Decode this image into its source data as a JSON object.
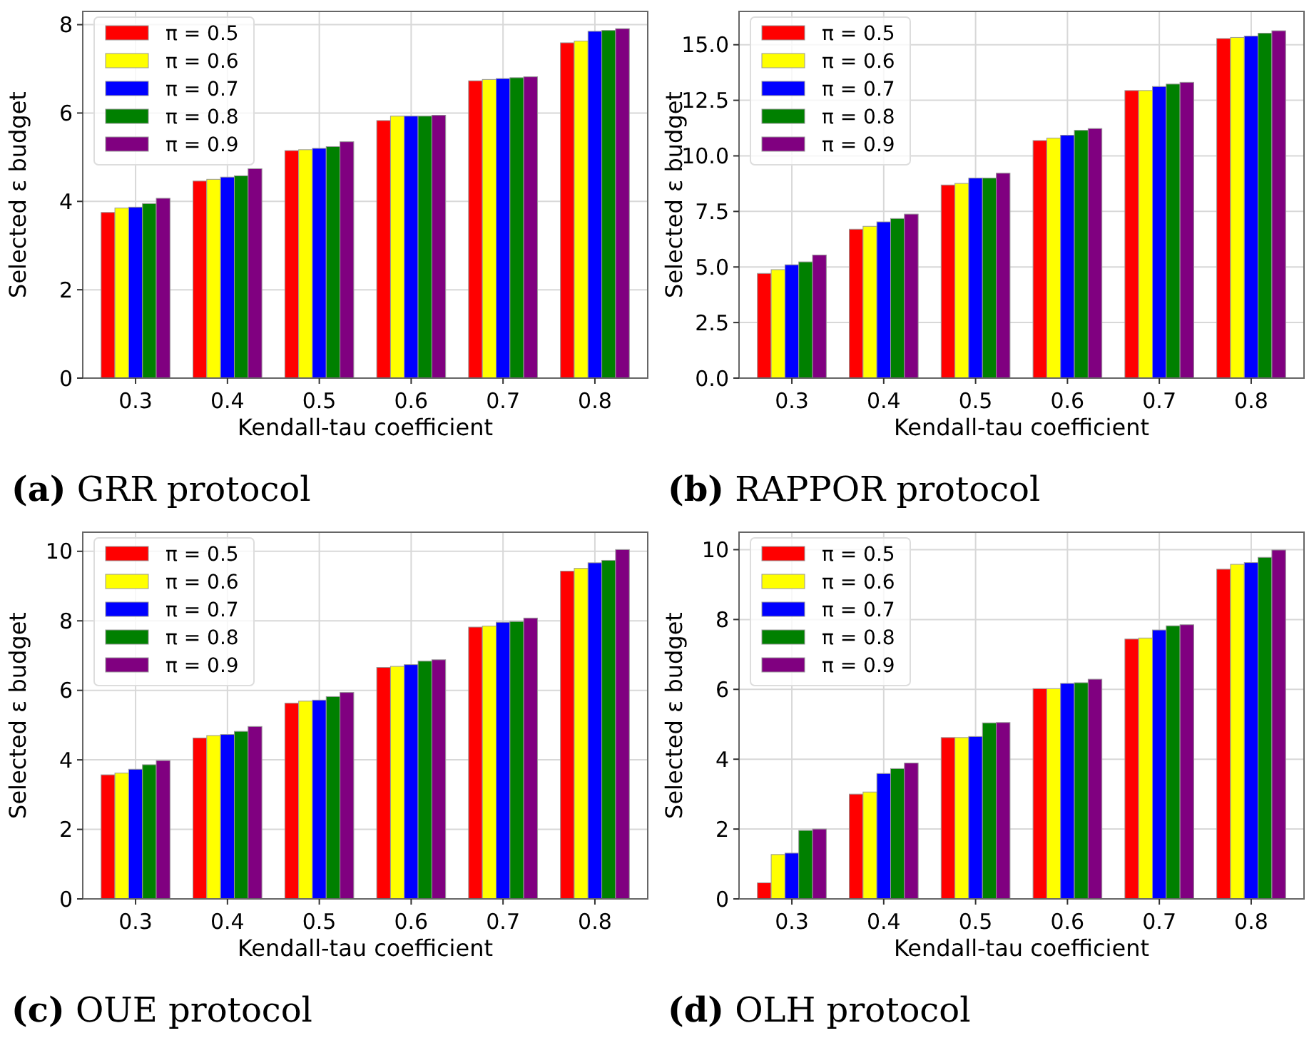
{
  "chart_data": [
    {
      "type": "bar",
      "title": "(a) GRR protocol",
      "xlabel": "Kendall-tau coefficient",
      "ylabel": "Selected ε budget",
      "categories": [
        "0.3",
        "0.4",
        "0.5",
        "0.6",
        "0.7",
        "0.8"
      ],
      "ylim": [
        0,
        8.3
      ],
      "yticks": [
        0,
        2,
        4,
        6,
        8
      ],
      "grid": true,
      "legend": "top left",
      "series": [
        {
          "name": "π = 0.5",
          "color": "#ff0000",
          "values": [
            3.75,
            4.46,
            5.15,
            5.83,
            6.73,
            7.59
          ]
        },
        {
          "name": "π = 0.6",
          "color": "#ffff00",
          "values": [
            3.85,
            4.5,
            5.17,
            5.93,
            6.76,
            7.63
          ]
        },
        {
          "name": "π = 0.7",
          "color": "#0000ff",
          "values": [
            3.87,
            4.55,
            5.2,
            5.93,
            6.78,
            7.85
          ]
        },
        {
          "name": "π = 0.8",
          "color": "#008000",
          "values": [
            3.95,
            4.58,
            5.24,
            5.93,
            6.8,
            7.87
          ]
        },
        {
          "name": "π = 0.9",
          "color": "#800080",
          "values": [
            4.07,
            4.74,
            5.35,
            5.95,
            6.82,
            7.91
          ]
        }
      ]
    },
    {
      "type": "bar",
      "title": "(b) RAPPOR protocol",
      "xlabel": "Kendall-tau coefficient",
      "ylabel": "Selected ε budget",
      "categories": [
        "0.3",
        "0.4",
        "0.5",
        "0.6",
        "0.7",
        "0.8"
      ],
      "ylim": [
        0,
        16.5
      ],
      "yticks": [
        {
          "value": 0,
          "label": "0.0"
        },
        {
          "value": 2.5,
          "label": "2.5"
        },
        {
          "value": 5,
          "label": "5.0"
        },
        {
          "value": 7.5,
          "label": "7.5"
        },
        {
          "value": 10,
          "label": "10.0"
        },
        {
          "value": 12.5,
          "label": "12.5"
        },
        {
          "value": 15,
          "label": "15.0"
        }
      ],
      "grid": true,
      "legend": "top left",
      "series": [
        {
          "name": "π = 0.5",
          "color": "#ff0000",
          "values": [
            4.71,
            6.7,
            8.69,
            10.69,
            12.94,
            15.28
          ]
        },
        {
          "name": "π = 0.6",
          "color": "#ffff00",
          "values": [
            4.88,
            6.83,
            8.76,
            10.8,
            12.94,
            15.33
          ]
        },
        {
          "name": "π = 0.7",
          "color": "#0000ff",
          "values": [
            5.1,
            7.03,
            9.0,
            10.93,
            13.12,
            15.39
          ]
        },
        {
          "name": "π = 0.8",
          "color": "#008000",
          "values": [
            5.23,
            7.18,
            9.0,
            11.15,
            13.23,
            15.52
          ]
        },
        {
          "name": "π = 0.9",
          "color": "#800080",
          "values": [
            5.54,
            7.38,
            9.22,
            11.23,
            13.31,
            15.63
          ]
        }
      ]
    },
    {
      "type": "bar",
      "title": "(c) OUE protocol",
      "xlabel": "Kendall-tau coefficient",
      "ylabel": "Selected ε budget",
      "categories": [
        "0.3",
        "0.4",
        "0.5",
        "0.6",
        "0.7",
        "0.8"
      ],
      "ylim": [
        0,
        10.55
      ],
      "yticks": [
        0,
        2,
        4,
        6,
        8,
        10
      ],
      "grid": true,
      "legend": "top left",
      "series": [
        {
          "name": "π = 0.5",
          "color": "#ff0000",
          "values": [
            3.57,
            4.63,
            5.63,
            6.66,
            7.82,
            9.43
          ]
        },
        {
          "name": "π = 0.6",
          "color": "#ffff00",
          "values": [
            3.62,
            4.7,
            5.69,
            6.69,
            7.85,
            9.51
          ]
        },
        {
          "name": "π = 0.7",
          "color": "#0000ff",
          "values": [
            3.73,
            4.73,
            5.72,
            6.74,
            7.96,
            9.67
          ]
        },
        {
          "name": "π = 0.8",
          "color": "#008000",
          "values": [
            3.86,
            4.82,
            5.82,
            6.84,
            7.98,
            9.74
          ]
        },
        {
          "name": "π = 0.9",
          "color": "#800080",
          "values": [
            3.98,
            4.96,
            5.94,
            6.88,
            8.08,
            10.05
          ]
        }
      ]
    },
    {
      "type": "bar",
      "title": "(d) OLH protocol",
      "xlabel": "Kendall-tau coefficient",
      "ylabel": "Selected ε budget",
      "categories": [
        "0.3",
        "0.4",
        "0.5",
        "0.6",
        "0.7",
        "0.8"
      ],
      "ylim": [
        0,
        10.5
      ],
      "yticks": [
        0,
        2,
        4,
        6,
        8,
        10
      ],
      "grid": true,
      "legend": "top left",
      "series": [
        {
          "name": "π = 0.5",
          "color": "#ff0000",
          "values": [
            0.46,
            3.0,
            4.62,
            6.02,
            7.44,
            9.44
          ]
        },
        {
          "name": "π = 0.6",
          "color": "#ffff00",
          "values": [
            1.27,
            3.06,
            4.62,
            6.02,
            7.47,
            9.58
          ]
        },
        {
          "name": "π = 0.7",
          "color": "#0000ff",
          "values": [
            1.31,
            3.59,
            4.65,
            6.17,
            7.7,
            9.63
          ]
        },
        {
          "name": "π = 0.8",
          "color": "#008000",
          "values": [
            1.96,
            3.73,
            5.04,
            6.19,
            7.82,
            9.78
          ]
        },
        {
          "name": "π = 0.9",
          "color": "#800080",
          "values": [
            2.0,
            3.89,
            5.05,
            6.29,
            7.85,
            9.99
          ]
        }
      ]
    }
  ]
}
